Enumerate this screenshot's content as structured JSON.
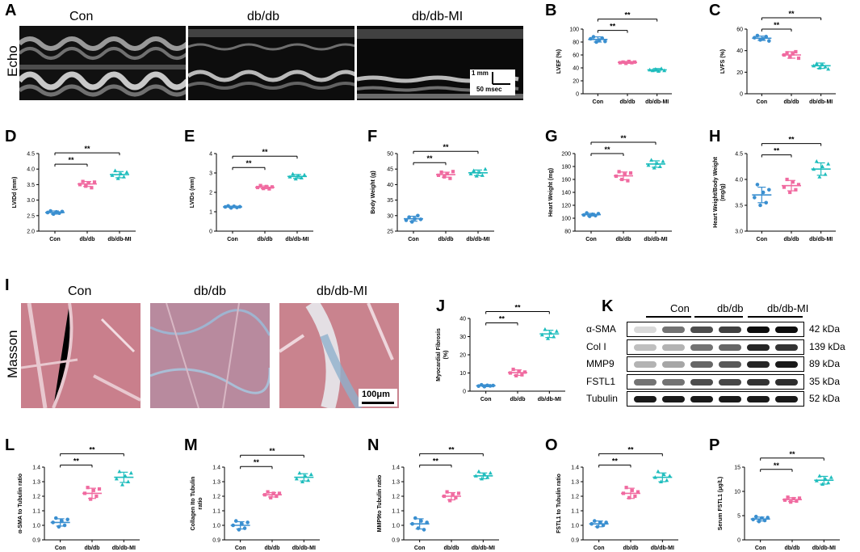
{
  "panel_letters": {
    "A": "A",
    "B": "B",
    "C": "C",
    "D": "D",
    "E": "E",
    "F": "F",
    "G": "G",
    "H": "H",
    "I": "I",
    "J": "J",
    "K": "K",
    "L": "L",
    "M": "M",
    "N": "N",
    "O": "O",
    "P": "P"
  },
  "group_labels": [
    "Con",
    "db/db",
    "db/db-MI"
  ],
  "row_labels": {
    "echo": "Echo",
    "masson": "Masson"
  },
  "echo_scale": {
    "mm": "1 mm",
    "msec": "50 msec"
  },
  "masson_scale": "100μm",
  "colors": {
    "con": "#3a8fd0",
    "dbdb": "#f06aa0",
    "dbdbmi": "#1fbdbd"
  },
  "blot": {
    "header": [
      "Con",
      "db/db",
      "db/db-MI"
    ],
    "rows": [
      {
        "label": "α-SMA",
        "kda": "42 kDa"
      },
      {
        "label": "Col I",
        "kda": "139 kDa"
      },
      {
        "label": "MMP9",
        "kda": "89 kDa"
      },
      {
        "label": "FSTL1",
        "kda": "35 kDa"
      },
      {
        "label": "Tubulin",
        "kda": "52 kDa"
      }
    ]
  },
  "chart_data": [
    {
      "id": "B",
      "type": "scatter",
      "categories": [
        "Con",
        "db/db",
        "db/db-MI"
      ],
      "ylabel": "LVEF (%)",
      "ylim": [
        0,
        100
      ],
      "yticks": [
        "0",
        "20",
        "40",
        "60",
        "80",
        "100"
      ],
      "points": [
        [
          85,
          88,
          80,
          83,
          86,
          81
        ],
        [
          48,
          49,
          47,
          50,
          48,
          49
        ],
        [
          37,
          36,
          38,
          35,
          39,
          36
        ]
      ],
      "mean": [
        84,
        48.5,
        37
      ],
      "sd": [
        4,
        1.5,
        2
      ],
      "sig": [
        {
          "from": 0,
          "to": 1,
          "label": "**"
        },
        {
          "from": 0,
          "to": 2,
          "label": "**"
        }
      ]
    },
    {
      "id": "C",
      "type": "scatter",
      "categories": [
        "Con",
        "db/db",
        "db/db-MI"
      ],
      "ylabel": "LVFS (%)",
      "ylim": [
        0,
        60
      ],
      "yticks": [
        "0",
        "20",
        "40",
        "60"
      ],
      "points": [
        [
          52,
          54,
          50,
          51,
          53,
          49
        ],
        [
          36,
          38,
          34,
          37,
          39,
          33
        ],
        [
          26,
          28,
          24,
          27,
          25,
          23
        ]
      ],
      "mean": [
        51.5,
        36,
        26
      ],
      "sd": [
        2,
        3,
        2.5
      ],
      "sig": [
        {
          "from": 0,
          "to": 1,
          "label": "**"
        },
        {
          "from": 0,
          "to": 2,
          "label": "**"
        }
      ]
    },
    {
      "id": "D",
      "type": "scatter",
      "categories": [
        "Con",
        "db/db",
        "db/db-MI"
      ],
      "ylabel": "LVIDd (mm)",
      "ylim": [
        2.0,
        4.5
      ],
      "yticks": [
        "2.0",
        "2.5",
        "3.0",
        "3.5",
        "4.0",
        "4.5"
      ],
      "points": [
        [
          2.6,
          2.65,
          2.55,
          2.62,
          2.58,
          2.63
        ],
        [
          3.5,
          3.6,
          3.45,
          3.55,
          3.4,
          3.58
        ],
        [
          3.8,
          3.95,
          3.7,
          3.85,
          3.75,
          3.9
        ]
      ],
      "mean": [
        2.6,
        3.52,
        3.82
      ],
      "sd": [
        0.05,
        0.08,
        0.1
      ],
      "sig": [
        {
          "from": 0,
          "to": 1,
          "label": "**"
        },
        {
          "from": 0,
          "to": 2,
          "label": "**"
        }
      ]
    },
    {
      "id": "E",
      "type": "scatter",
      "categories": [
        "Con",
        "db/db",
        "db/db-MI"
      ],
      "ylabel": "LVIDs (mm)",
      "ylim": [
        0,
        4
      ],
      "yticks": [
        "0",
        "1",
        "2",
        "3",
        "4"
      ],
      "points": [
        [
          1.25,
          1.3,
          1.2,
          1.28,
          1.22,
          1.26
        ],
        [
          2.25,
          2.35,
          2.2,
          2.3,
          2.18,
          2.28
        ],
        [
          2.8,
          2.95,
          2.7,
          2.85,
          2.75,
          2.9
        ]
      ],
      "mean": [
        1.25,
        2.26,
        2.82
      ],
      "sd": [
        0.04,
        0.07,
        0.1
      ],
      "sig": [
        {
          "from": 0,
          "to": 1,
          "label": "**"
        },
        {
          "from": 0,
          "to": 2,
          "label": "**"
        }
      ]
    },
    {
      "id": "F",
      "type": "scatter",
      "categories": [
        "Con",
        "db/db",
        "db/db-MI"
      ],
      "ylabel": "Body Weight (g)",
      "ylim": [
        25,
        50
      ],
      "yticks": [
        "25",
        "30",
        "35",
        "40",
        "45",
        "50"
      ],
      "points": [
        [
          28.5,
          29.5,
          28,
          29,
          30,
          28.8
        ],
        [
          43,
          44,
          42.5,
          43.5,
          42,
          44.2
        ],
        [
          43.5,
          44.5,
          42.8,
          44,
          43,
          45
        ]
      ],
      "mean": [
        29,
        43.2,
        43.8
      ],
      "sd": [
        0.8,
        0.8,
        0.9
      ],
      "sig": [
        {
          "from": 0,
          "to": 1,
          "label": "**"
        },
        {
          "from": 0,
          "to": 2,
          "label": "**"
        }
      ]
    },
    {
      "id": "G",
      "type": "scatter",
      "categories": [
        "Con",
        "db/db",
        "db/db-MI"
      ],
      "ylabel": "Heart Weight (mg)",
      "ylim": [
        80,
        200
      ],
      "yticks": [
        "80",
        "100",
        "120",
        "140",
        "160",
        "180",
        "200"
      ],
      "points": [
        [
          105,
          108,
          103,
          106,
          104,
          107
        ],
        [
          165,
          172,
          160,
          168,
          158,
          170
        ],
        [
          182,
          190,
          178,
          185,
          180,
          188
        ]
      ],
      "mean": [
        105.5,
        165.5,
        183.8
      ],
      "sd": [
        2,
        6,
        5
      ],
      "sig": [
        {
          "from": 0,
          "to": 1,
          "label": "**"
        },
        {
          "from": 0,
          "to": 2,
          "label": "**"
        }
      ]
    },
    {
      "id": "H",
      "type": "scatter",
      "categories": [
        "Con",
        "db/db",
        "db/db-MI"
      ],
      "ylabel": "Heart Weight/Body Weight (mg/g)",
      "ylim": [
        3.0,
        4.5
      ],
      "yticks": [
        "3.0",
        "3.5",
        "4.0",
        "4.5"
      ],
      "points": [
        [
          3.65,
          3.9,
          3.5,
          3.75,
          3.55,
          3.8
        ],
        [
          3.85,
          4.0,
          3.75,
          3.95,
          3.8,
          3.9
        ],
        [
          4.2,
          4.35,
          4.05,
          4.25,
          4.1,
          4.3
        ]
      ],
      "mean": [
        3.7,
        3.88,
        4.2
      ],
      "sd": [
        0.15,
        0.1,
        0.12
      ],
      "sig": [
        {
          "from": 0,
          "to": 1,
          "label": "**"
        },
        {
          "from": 0,
          "to": 2,
          "label": "**"
        }
      ]
    },
    {
      "id": "J",
      "type": "scatter",
      "categories": [
        "Con",
        "db/db",
        "db/db-MI"
      ],
      "ylabel": "Myocardial Fibrosis (%)",
      "ylim": [
        0,
        40
      ],
      "yticks": [
        "0",
        "10",
        "20",
        "30",
        "40"
      ],
      "points": [
        [
          2.8,
          3.5,
          2.5,
          3.2,
          2.9,
          3.1
        ],
        [
          10,
          12,
          8.5,
          11,
          9,
          10.5
        ],
        [
          31,
          34,
          29,
          32,
          30,
          33
        ]
      ],
      "mean": [
        3,
        10.2,
        31.5
      ],
      "sd": [
        0.5,
        1.5,
        2
      ],
      "sig": [
        {
          "from": 0,
          "to": 1,
          "label": "**"
        },
        {
          "from": 0,
          "to": 2,
          "label": "**"
        }
      ]
    },
    {
      "id": "L",
      "type": "scatter",
      "categories": [
        "Con",
        "db/db",
        "db/db-MI"
      ],
      "ylabel": "α-SMA to Tubulin ratio",
      "ylim": [
        0.9,
        1.4
      ],
      "yticks": [
        "0.9",
        "1.0",
        "1.1",
        "1.2",
        "1.3",
        "1.4"
      ],
      "points": [
        [
          1.02,
          1.05,
          0.99,
          1.03,
          1.0,
          1.04
        ],
        [
          1.22,
          1.26,
          1.18,
          1.24,
          1.2,
          1.25
        ],
        [
          1.32,
          1.37,
          1.28,
          1.34,
          1.3,
          1.36
        ]
      ],
      "mean": [
        1.02,
        1.22,
        1.33
      ],
      "sd": [
        0.025,
        0.035,
        0.035
      ],
      "sig": [
        {
          "from": 0,
          "to": 1,
          "label": "**"
        },
        {
          "from": 0,
          "to": 2,
          "label": "**"
        }
      ]
    },
    {
      "id": "M",
      "type": "scatter",
      "categories": [
        "Con",
        "db/db",
        "db/db-MI"
      ],
      "ylabel": "Collagen Ito Tubulin ratio",
      "ylim": [
        0.9,
        1.4
      ],
      "yticks": [
        "0.9",
        "1.0",
        "1.1",
        "1.2",
        "1.3",
        "1.4"
      ],
      "points": [
        [
          1.0,
          1.03,
          0.97,
          1.01,
          0.98,
          1.02
        ],
        [
          1.21,
          1.23,
          1.19,
          1.22,
          1.2,
          1.22
        ],
        [
          1.32,
          1.36,
          1.3,
          1.34,
          1.31,
          1.35
        ]
      ],
      "mean": [
        1.0,
        1.21,
        1.33
      ],
      "sd": [
        0.025,
        0.015,
        0.025
      ],
      "sig": [
        {
          "from": 0,
          "to": 1,
          "label": "**"
        },
        {
          "from": 0,
          "to": 2,
          "label": "**"
        }
      ]
    },
    {
      "id": "N",
      "type": "scatter",
      "categories": [
        "Con",
        "db/db",
        "db/db-MI"
      ],
      "ylabel": "MMP9to Tubulin ratio",
      "ylim": [
        0.9,
        1.4
      ],
      "yticks": [
        "0.9",
        "1.0",
        "1.1",
        "1.2",
        "1.3",
        "1.4"
      ],
      "points": [
        [
          1.01,
          1.05,
          0.98,
          1.03,
          0.97,
          1.02
        ],
        [
          1.2,
          1.23,
          1.17,
          1.21,
          1.19,
          1.22
        ],
        [
          1.34,
          1.37,
          1.32,
          1.35,
          1.33,
          1.36
        ]
      ],
      "mean": [
        1.01,
        1.2,
        1.34
      ],
      "sd": [
        0.035,
        0.025,
        0.02
      ],
      "sig": [
        {
          "from": 0,
          "to": 1,
          "label": "**"
        },
        {
          "from": 0,
          "to": 2,
          "label": "**"
        }
      ]
    },
    {
      "id": "O",
      "type": "scatter",
      "categories": [
        "Con",
        "db/db",
        "db/db-MI"
      ],
      "ylabel": "FSTL1 to Tubulin ratio",
      "ylim": [
        0.9,
        1.4
      ],
      "yticks": [
        "0.9",
        "1.0",
        "1.1",
        "1.2",
        "1.3",
        "1.4"
      ],
      "points": [
        [
          1.01,
          1.03,
          0.99,
          1.02,
          1.0,
          1.02
        ],
        [
          1.22,
          1.26,
          1.19,
          1.24,
          1.2,
          1.23
        ],
        [
          1.33,
          1.37,
          1.3,
          1.35,
          1.31,
          1.34
        ]
      ],
      "mean": [
        1.01,
        1.22,
        1.33
      ],
      "sd": [
        0.02,
        0.035,
        0.03
      ],
      "sig": [
        {
          "from": 0,
          "to": 1,
          "label": "**"
        },
        {
          "from": 0,
          "to": 2,
          "label": "**"
        }
      ]
    },
    {
      "id": "P",
      "type": "scatter",
      "categories": [
        "Con",
        "db/db",
        "db/db-MI"
      ],
      "ylabel": "Serum FSTL1 (μg/L)",
      "ylim": [
        0,
        15
      ],
      "yticks": [
        "0",
        "5",
        "10",
        "15"
      ],
      "points": [
        [
          4.2,
          4.8,
          3.8,
          4.5,
          4.0,
          4.6
        ],
        [
          8.2,
          8.8,
          7.8,
          8.5,
          8.0,
          8.6
        ],
        [
          12.2,
          13.2,
          11.5,
          12.6,
          11.8,
          12.9
        ]
      ],
      "mean": [
        4.3,
        8.3,
        12.3
      ],
      "sd": [
        0.4,
        0.4,
        0.8
      ],
      "sig": [
        {
          "from": 0,
          "to": 1,
          "label": "**"
        },
        {
          "from": 0,
          "to": 2,
          "label": "**"
        }
      ]
    }
  ]
}
